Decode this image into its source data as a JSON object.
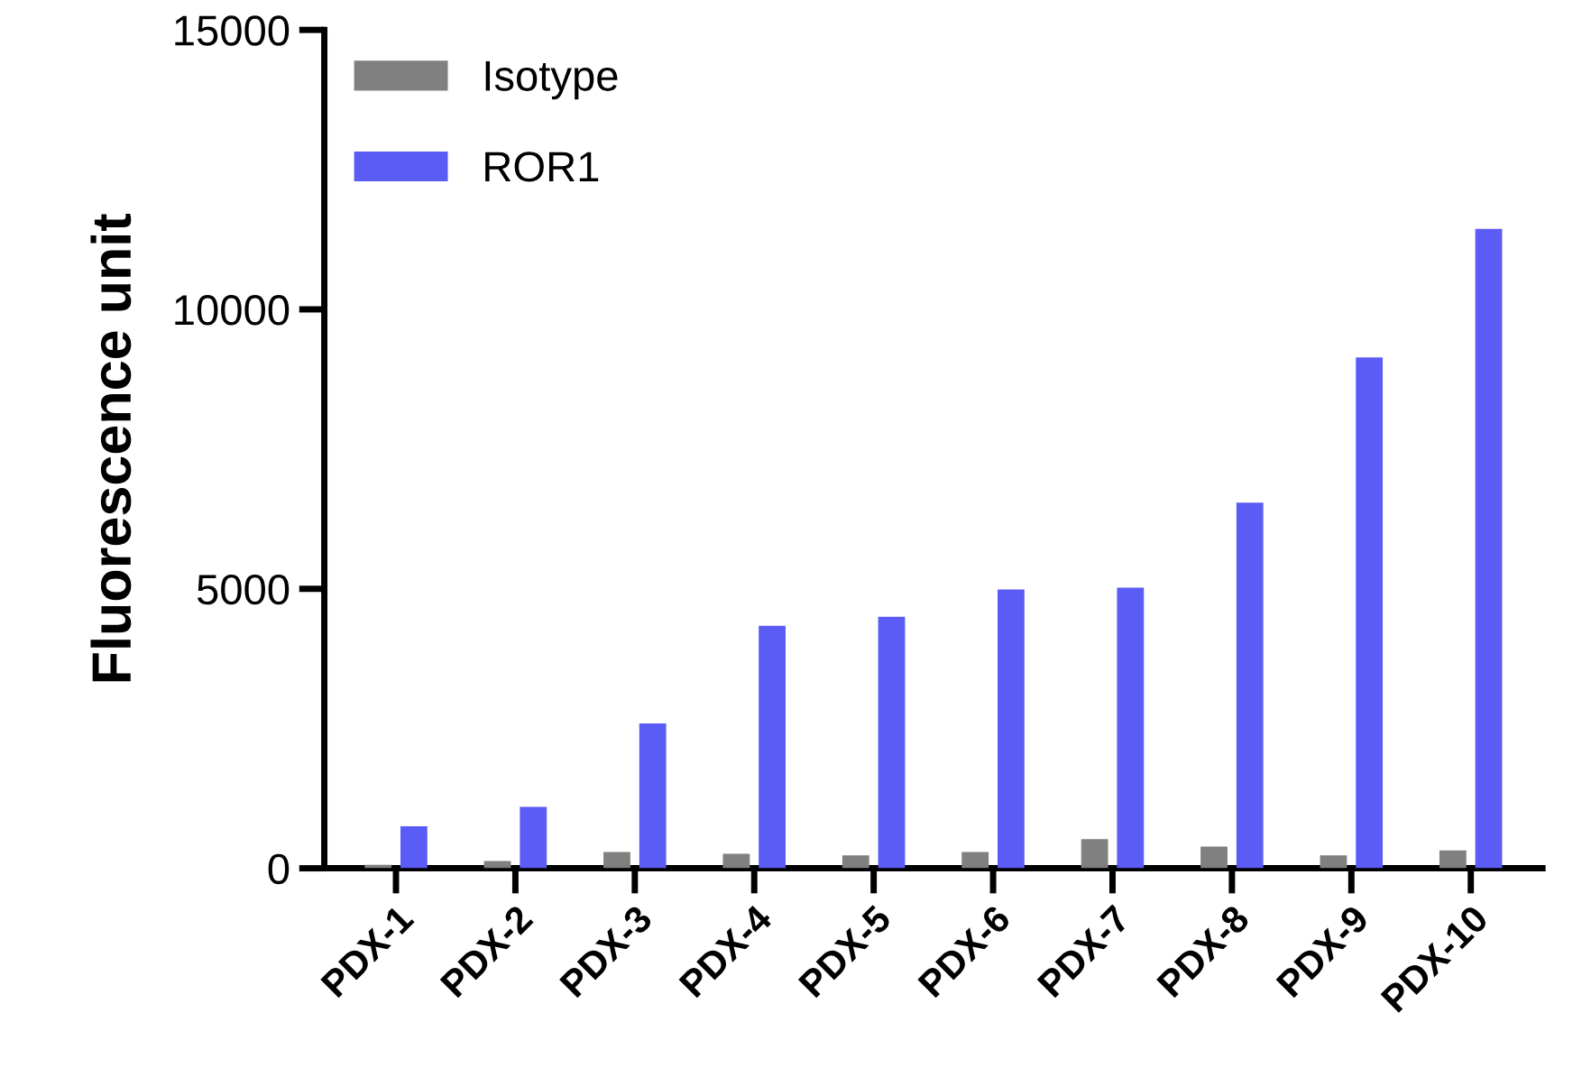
{
  "chart_data": {
    "type": "bar",
    "ylabel": "Fluorescence unit",
    "categories": [
      "PDX-1",
      "PDX-2",
      "PDX-3",
      "PDX-4",
      "PDX-5",
      "PDX-6",
      "PDX-7",
      "PDX-8",
      "PDX-9",
      "PDX-10"
    ],
    "series": [
      {
        "name": "Isotype",
        "color": "#808080",
        "values": [
          60,
          130,
          290,
          260,
          230,
          290,
          520,
          390,
          230,
          320
        ]
      },
      {
        "name": "ROR1",
        "color": "#5b5bf5",
        "values": [
          750,
          1100,
          2590,
          4340,
          4500,
          4990,
          5020,
          6540,
          9140,
          11440
        ]
      }
    ],
    "ylim": [
      0,
      15000
    ],
    "yticks": [
      0,
      5000,
      10000,
      15000
    ],
    "grid": false,
    "legend": "top left"
  }
}
